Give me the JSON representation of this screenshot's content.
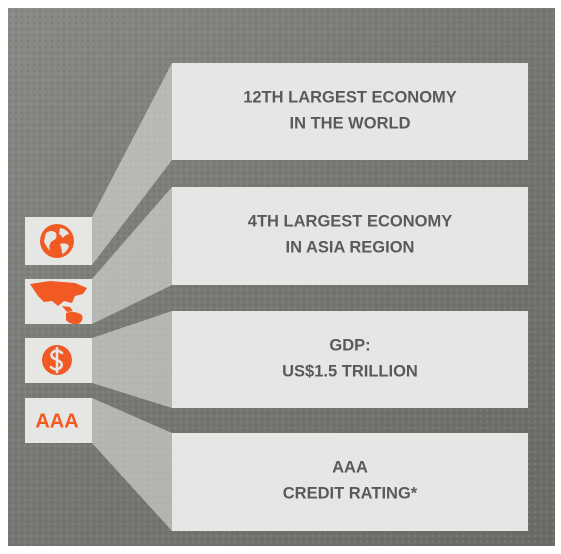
{
  "items": [
    {
      "line1": "12TH LARGEST ECONOMY",
      "line2": "IN THE WORLD"
    },
    {
      "line1": "4TH LARGEST ECONOMY",
      "line2": "IN ASIA REGION"
    },
    {
      "line1": "GDP:",
      "line2": "US$1.5 TRILLION"
    },
    {
      "line1": "AAA",
      "line2": "CREDIT RATING*"
    }
  ],
  "badge": "AAA"
}
